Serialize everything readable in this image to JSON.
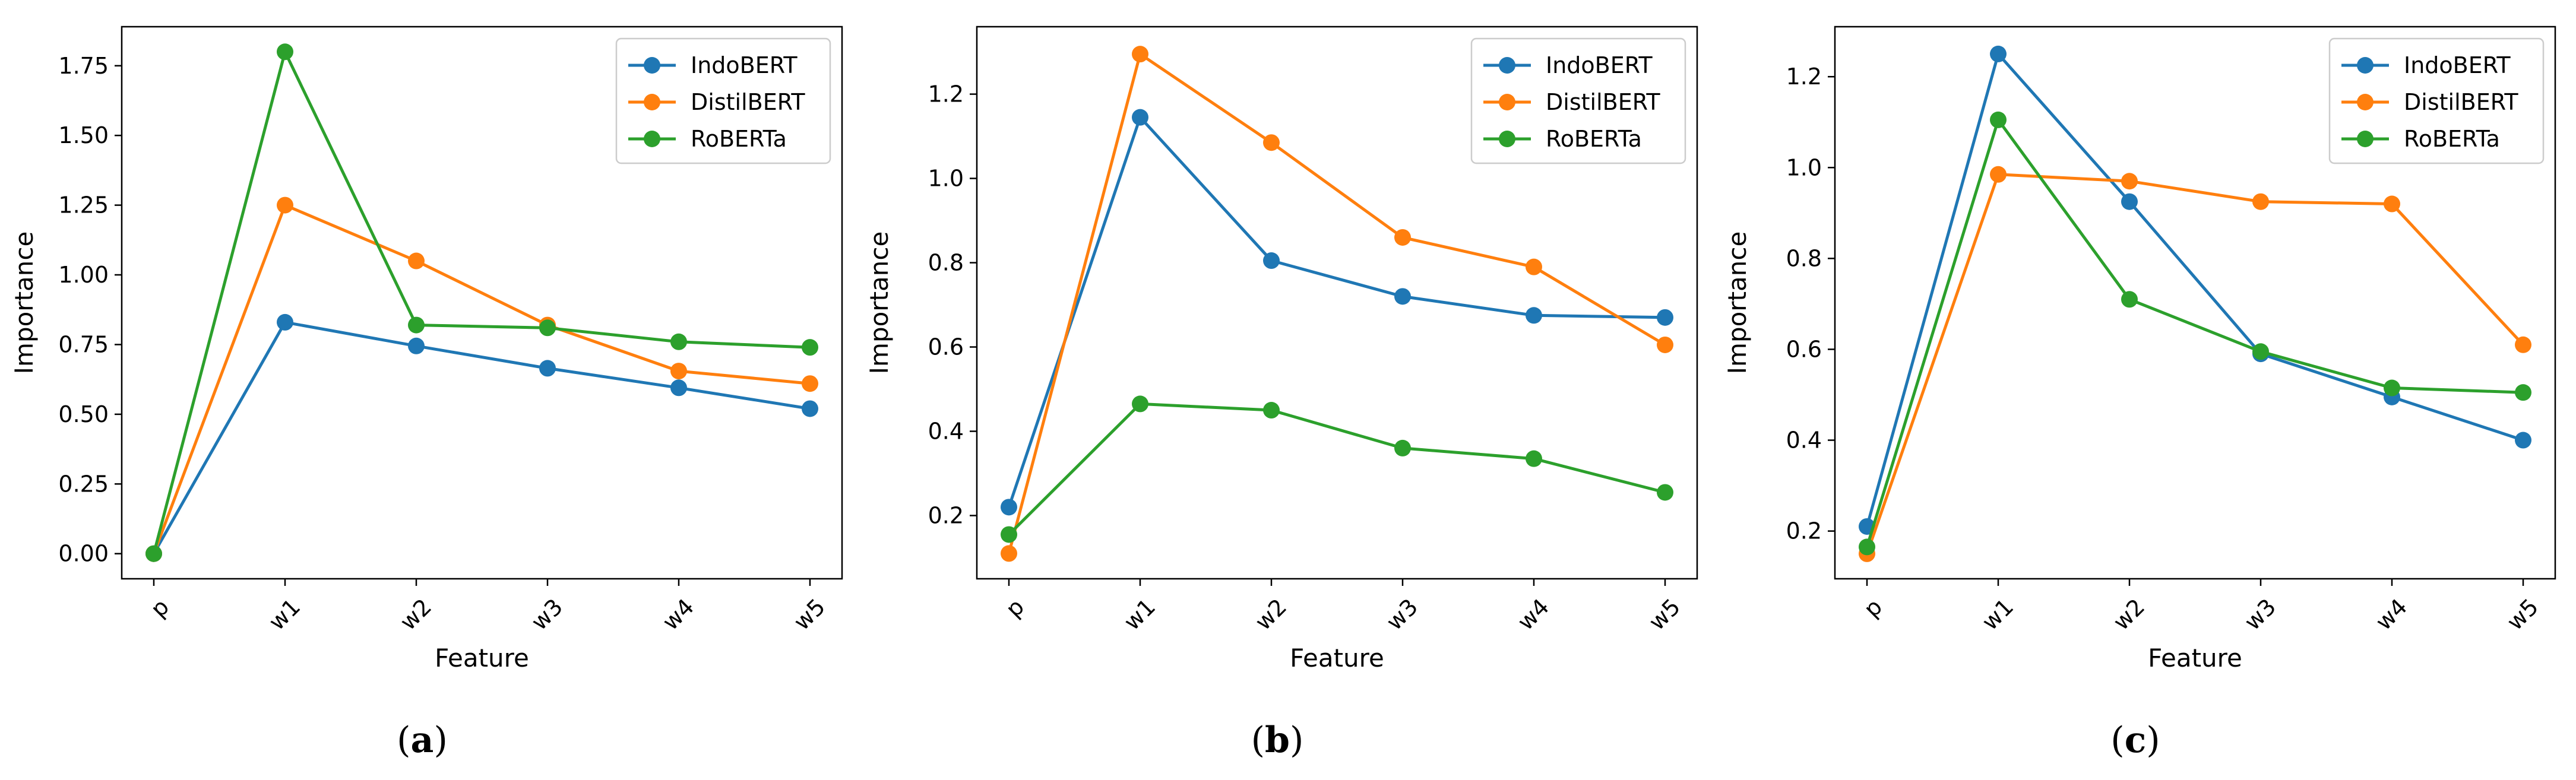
{
  "figure": {
    "captions": [
      "(a)",
      "(b)",
      "(c)"
    ]
  },
  "chart_data": [
    {
      "type": "line",
      "panel": "a",
      "caption_letter": "a",
      "categories": [
        "p",
        "w1",
        "w2",
        "w3",
        "w4",
        "w5"
      ],
      "xlabel": "Feature",
      "ylabel": "Importance",
      "ylim": [
        -0.09,
        1.89
      ],
      "yticks": [
        0.0,
        0.25,
        0.5,
        0.75,
        1.0,
        1.25,
        1.5,
        1.75
      ],
      "ytick_labels": [
        "0.00",
        "0.25",
        "0.50",
        "0.75",
        "1.00",
        "1.25",
        "1.50",
        "1.75"
      ],
      "legend_position": "top-right",
      "series": [
        {
          "name": "IndoBERT",
          "color": "#1f77b4",
          "values": [
            0.0,
            0.83,
            0.745,
            0.665,
            0.595,
            0.52
          ]
        },
        {
          "name": "DistilBERT",
          "color": "#ff7f0e",
          "values": [
            0.0,
            1.25,
            1.05,
            0.82,
            0.655,
            0.61
          ]
        },
        {
          "name": "RoBERTa",
          "color": "#2ca02c",
          "values": [
            0.0,
            1.8,
            0.82,
            0.81,
            0.76,
            0.74
          ]
        }
      ]
    },
    {
      "type": "line",
      "panel": "b",
      "caption_letter": "b",
      "categories": [
        "p",
        "w1",
        "w2",
        "w3",
        "w4",
        "w5"
      ],
      "xlabel": "Feature",
      "ylabel": "Importance",
      "ylim": [
        0.05,
        1.36
      ],
      "yticks": [
        0.2,
        0.4,
        0.6,
        0.8,
        1.0,
        1.2
      ],
      "ytick_labels": [
        "0.2",
        "0.4",
        "0.6",
        "0.8",
        "1.0",
        "1.2"
      ],
      "legend_position": "top-right",
      "series": [
        {
          "name": "IndoBERT",
          "color": "#1f77b4",
          "values": [
            0.22,
            1.145,
            0.805,
            0.72,
            0.675,
            0.67
          ]
        },
        {
          "name": "DistilBERT",
          "color": "#ff7f0e",
          "values": [
            0.11,
            1.295,
            1.085,
            0.86,
            0.79,
            0.605
          ]
        },
        {
          "name": "RoBERTa",
          "color": "#2ca02c",
          "values": [
            0.155,
            0.465,
            0.45,
            0.36,
            0.335,
            0.255
          ]
        }
      ]
    },
    {
      "type": "line",
      "panel": "c",
      "caption_letter": "c",
      "categories": [
        "p",
        "w1",
        "w2",
        "w3",
        "w4",
        "w5"
      ],
      "xlabel": "Feature",
      "ylabel": "Importance",
      "ylim": [
        0.095,
        1.31
      ],
      "yticks": [
        0.2,
        0.4,
        0.6,
        0.8,
        1.0,
        1.2
      ],
      "ytick_labels": [
        "0.2",
        "0.4",
        "0.6",
        "0.8",
        "1.0",
        "1.2"
      ],
      "legend_position": "top-right",
      "series": [
        {
          "name": "IndoBERT",
          "color": "#1f77b4",
          "values": [
            0.21,
            1.25,
            0.925,
            0.59,
            0.495,
            0.4
          ]
        },
        {
          "name": "DistilBERT",
          "color": "#ff7f0e",
          "values": [
            0.15,
            0.985,
            0.97,
            0.925,
            0.92,
            0.61
          ]
        },
        {
          "name": "RoBERTa",
          "color": "#2ca02c",
          "values": [
            0.165,
            1.105,
            0.71,
            0.595,
            0.515,
            0.505
          ]
        }
      ]
    }
  ]
}
